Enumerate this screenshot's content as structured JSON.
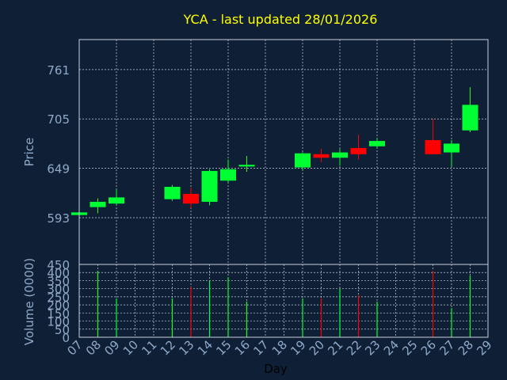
{
  "colors": {
    "background": "#0f2036",
    "frame": "#c8d0dc",
    "grid": "#c8d0dc",
    "title": "#ffff00",
    "axis_text": "#8fa9c9",
    "xlabel_text": "#000000",
    "up": "#00ff33",
    "down": "#ff0000"
  },
  "chart_data": [
    {
      "type": "candlestick",
      "title": "YCA - last updated 28/01/2026",
      "ylabel": "Price",
      "ylim": [
        540,
        795
      ],
      "y_ticks": [
        593,
        649,
        705,
        761
      ],
      "grid": true,
      "categories": [
        "07",
        "08",
        "09",
        "10",
        "11",
        "12",
        "13",
        "14",
        "15",
        "16",
        "17",
        "18",
        "19",
        "20",
        "21",
        "22",
        "23",
        "24",
        "25",
        "26",
        "27",
        "28",
        "29"
      ],
      "series": [
        {
          "day": "07",
          "open": 596,
          "high": 600,
          "low": 595,
          "close": 599
        },
        {
          "day": "08",
          "open": 605,
          "high": 615,
          "low": 598,
          "close": 611
        },
        {
          "day": "09",
          "open": 609,
          "high": 625,
          "low": 607,
          "close": 616
        },
        {
          "day": "12",
          "open": 614,
          "high": 630,
          "low": 612,
          "close": 628
        },
        {
          "day": "13",
          "open": 620,
          "high": 627,
          "low": 604,
          "close": 609
        },
        {
          "day": "14",
          "open": 611,
          "high": 648,
          "low": 607,
          "close": 646
        },
        {
          "day": "15",
          "open": 635,
          "high": 659,
          "low": 633,
          "close": 648
        },
        {
          "day": "16",
          "open": 651,
          "high": 663,
          "low": 645,
          "close": 653
        },
        {
          "day": "19",
          "open": 650,
          "high": 667,
          "low": 647,
          "close": 666
        },
        {
          "day": "20",
          "open": 665,
          "high": 671,
          "low": 656,
          "close": 661
        },
        {
          "day": "21",
          "open": 661,
          "high": 671,
          "low": 652,
          "close": 667
        },
        {
          "day": "22",
          "open": 672,
          "high": 687,
          "low": 659,
          "close": 665
        },
        {
          "day": "23",
          "open": 674,
          "high": 683,
          "low": 672,
          "close": 680
        },
        {
          "day": "26",
          "open": 681,
          "high": 705,
          "low": 665,
          "close": 665
        },
        {
          "day": "27",
          "open": 667,
          "high": 681,
          "low": 651,
          "close": 677
        },
        {
          "day": "28",
          "open": 692,
          "high": 741,
          "low": 690,
          "close": 721
        }
      ]
    },
    {
      "type": "bar",
      "ylabel": "Volume (0000)",
      "xlabel": "Day",
      "ylim": [
        0,
        450
      ],
      "y_ticks": [
        0,
        50,
        100,
        150,
        200,
        250,
        300,
        350,
        400,
        450
      ],
      "grid": true,
      "categories": [
        "07",
        "08",
        "09",
        "10",
        "11",
        "12",
        "13",
        "14",
        "15",
        "16",
        "17",
        "18",
        "19",
        "20",
        "21",
        "22",
        "23",
        "24",
        "25",
        "26",
        "27",
        "28",
        "29"
      ],
      "bars": [
        {
          "day": "08",
          "value": 410,
          "direction": "up"
        },
        {
          "day": "09",
          "value": 240,
          "direction": "up"
        },
        {
          "day": "12",
          "value": 240,
          "direction": "up"
        },
        {
          "day": "13",
          "value": 310,
          "direction": "down"
        },
        {
          "day": "14",
          "value": 350,
          "direction": "up"
        },
        {
          "day": "15",
          "value": 370,
          "direction": "up"
        },
        {
          "day": "16",
          "value": 220,
          "direction": "up"
        },
        {
          "day": "19",
          "value": 240,
          "direction": "up"
        },
        {
          "day": "20",
          "value": 240,
          "direction": "down"
        },
        {
          "day": "21",
          "value": 300,
          "direction": "up"
        },
        {
          "day": "22",
          "value": 260,
          "direction": "down"
        },
        {
          "day": "23",
          "value": 220,
          "direction": "up"
        },
        {
          "day": "26",
          "value": 410,
          "direction": "down"
        },
        {
          "day": "27",
          "value": 180,
          "direction": "up"
        },
        {
          "day": "28",
          "value": 380,
          "direction": "up"
        }
      ]
    }
  ]
}
